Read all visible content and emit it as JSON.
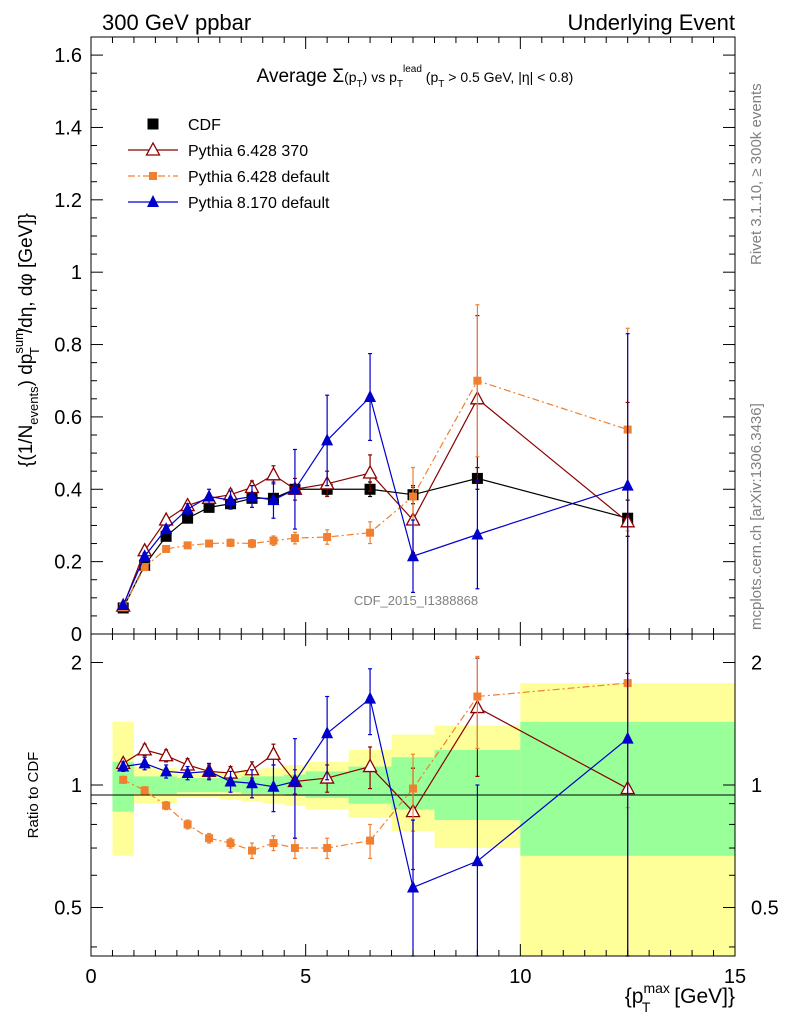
{
  "header": {
    "left": "300 GeV ppbar",
    "right": "Underlying Event"
  },
  "side": {
    "rivet": "Rivet 3.1.10, ≥ 300k events",
    "mcplots": "mcplots.cern.ch [arXiv:1306.3436]"
  },
  "chart_data": [
    {
      "type": "scatter",
      "title": "Average Σ(p_T) vs p_T^lead (p_T > 0.5 GeV, |η| < 0.8)",
      "title_parts": {
        "a": "Average ",
        "b": "Σ",
        "c": "(p",
        "d": "T",
        "e": ") vs p",
        "f": "T",
        "g": "lead",
        "h": " (p",
        "i": "T",
        "j": " > 0.5 GeV, |η| < 0.8)"
      },
      "ylabel": "(1/N_events) dp_T^sum/dη, dφ [GeV]",
      "ylabel_parts": {
        "a": "{(1/N",
        "b": "events",
        "c": ") dp",
        "d": "sum",
        "e": "T",
        "f": "/dη, dφ [GeV]}"
      },
      "watermark": "CDF_2015_I1388868",
      "xlim": [
        0,
        15
      ],
      "ylim": [
        0,
        1.65
      ],
      "yticks": [
        "0",
        "0.2",
        "0.4",
        "0.6",
        "0.8",
        "1",
        "1.2",
        "1.4",
        "1.6"
      ],
      "legend_position": "top-left",
      "series": [
        {
          "name": "CDF",
          "color": "#000000",
          "marker": "square",
          "x": [
            0.75,
            1.25,
            1.75,
            2.25,
            2.75,
            3.25,
            3.75,
            4.25,
            4.75,
            5.5,
            6.5,
            7.5,
            9.0,
            12.5
          ],
          "y": [
            0.072,
            0.19,
            0.27,
            0.32,
            0.35,
            0.36,
            0.375,
            0.375,
            0.4,
            0.4,
            0.4,
            0.385,
            0.43,
            0.32
          ],
          "yerr": [
            0.004,
            0.005,
            0.006,
            0.006,
            0.007,
            0.008,
            0.008,
            0.01,
            0.012,
            0.015,
            0.02,
            0.025,
            0.03,
            0.05
          ]
        },
        {
          "name": "Pythia 6.428 370",
          "color": "#8b0000",
          "marker": "open-triangle",
          "x": [
            0.75,
            1.25,
            1.75,
            2.25,
            2.75,
            3.25,
            3.75,
            4.25,
            4.75,
            5.5,
            6.5,
            7.5,
            9.0,
            12.5
          ],
          "y": [
            0.077,
            0.23,
            0.315,
            0.355,
            0.375,
            0.385,
            0.405,
            0.44,
            0.4,
            0.415,
            0.445,
            0.315,
            0.65,
            0.31
          ],
          "yerr": [
            0.004,
            0.01,
            0.01,
            0.012,
            0.013,
            0.015,
            0.018,
            0.025,
            0.03,
            0.035,
            0.05,
            0.09,
            0.23,
            0.33
          ]
        },
        {
          "name": "Pythia 6.428 default",
          "color": "#f08030",
          "marker": "small-square",
          "dashed": true,
          "x": [
            0.75,
            1.25,
            1.75,
            2.25,
            2.75,
            3.25,
            3.75,
            4.25,
            4.75,
            5.5,
            6.5,
            7.5,
            9.0,
            12.5
          ],
          "y": [
            0.074,
            0.185,
            0.235,
            0.245,
            0.25,
            0.252,
            0.25,
            0.258,
            0.265,
            0.268,
            0.28,
            0.38,
            0.7,
            0.565
          ],
          "yerr": [
            0.003,
            0.006,
            0.007,
            0.008,
            0.009,
            0.01,
            0.011,
            0.013,
            0.016,
            0.02,
            0.03,
            0.08,
            0.21,
            0.28
          ]
        },
        {
          "name": "Pythia 8.170 default",
          "color": "#0000cc",
          "marker": "triangle",
          "x": [
            0.75,
            1.25,
            1.75,
            2.25,
            2.75,
            3.25,
            3.75,
            4.25,
            4.75,
            5.5,
            6.5,
            7.5,
            9.0,
            12.5
          ],
          "y": [
            0.08,
            0.215,
            0.29,
            0.345,
            0.38,
            0.37,
            0.38,
            0.37,
            0.4,
            0.535,
            0.655,
            0.215,
            0.275,
            0.41
          ],
          "yerr": [
            0.004,
            0.01,
            0.01,
            0.015,
            0.02,
            0.025,
            0.03,
            0.05,
            0.11,
            0.125,
            0.12,
            0.1,
            0.15,
            0.42
          ]
        }
      ]
    },
    {
      "type": "scatter",
      "title": "",
      "xlabel": "{p_T^max [GeV]}",
      "xlabel_parts": {
        "a": "{p",
        "b": "max",
        "c": "T",
        "d": " [GeV]}"
      },
      "ylabel": "Ratio to CDF",
      "xlim": [
        0,
        15
      ],
      "ylim": [
        0.38,
        2.35
      ],
      "log_y": true,
      "yticks": [
        "0.5",
        "1",
        "2"
      ],
      "xticks": [
        "0",
        "5",
        "10",
        "15"
      ],
      "bands": [
        {
          "x0": 0.5,
          "x1": 1.0,
          "y1lo": 0.86,
          "y1hi": 1.14,
          "y2lo": 0.67,
          "y2hi": 1.43
        },
        {
          "x0": 1.0,
          "x1": 1.5,
          "y1lo": 0.95,
          "y1hi": 1.05,
          "y2lo": 0.9,
          "y2hi": 1.11
        },
        {
          "x0": 1.5,
          "x1": 2.0,
          "y1lo": 0.95,
          "y1hi": 1.05,
          "y2lo": 0.9,
          "y2hi": 1.1
        },
        {
          "x0": 2.0,
          "x1": 2.5,
          "y1lo": 0.96,
          "y1hi": 1.04,
          "y2lo": 0.93,
          "y2hi": 1.08
        },
        {
          "x0": 2.5,
          "x1": 3.0,
          "y1lo": 0.96,
          "y1hi": 1.04,
          "y2lo": 0.93,
          "y2hi": 1.08
        },
        {
          "x0": 3.0,
          "x1": 3.5,
          "y1lo": 0.96,
          "y1hi": 1.04,
          "y2lo": 0.92,
          "y2hi": 1.08
        },
        {
          "x0": 3.5,
          "x1": 4.0,
          "y1lo": 0.95,
          "y1hi": 1.05,
          "y2lo": 0.91,
          "y2hi": 1.09
        },
        {
          "x0": 4.0,
          "x1": 4.5,
          "y1lo": 0.95,
          "y1hi": 1.05,
          "y2lo": 0.9,
          "y2hi": 1.1
        },
        {
          "x0": 4.5,
          "x1": 5.0,
          "y1lo": 0.94,
          "y1hi": 1.06,
          "y2lo": 0.89,
          "y2hi": 1.12
        },
        {
          "x0": 5.0,
          "x1": 6.0,
          "y1lo": 0.93,
          "y1hi": 1.08,
          "y2lo": 0.87,
          "y2hi": 1.14
        },
        {
          "x0": 6.0,
          "x1": 7.0,
          "y1lo": 0.9,
          "y1hi": 1.11,
          "y2lo": 0.83,
          "y2hi": 1.22
        },
        {
          "x0": 7.0,
          "x1": 8.0,
          "y1lo": 0.87,
          "y1hi": 1.17,
          "y2lo": 0.77,
          "y2hi": 1.33
        },
        {
          "x0": 8.0,
          "x1": 10.0,
          "y1lo": 0.82,
          "y1hi": 1.22,
          "y2lo": 0.7,
          "y2hi": 1.4
        },
        {
          "x0": 10.0,
          "x1": 15.0,
          "y1lo": 0.67,
          "y1hi": 1.43,
          "y2lo": 0.3,
          "y2hi": 1.78
        }
      ],
      "series": [
        {
          "name": "Pythia 6.428 370",
          "color": "#8b0000",
          "marker": "open-triangle",
          "x": [
            0.75,
            1.25,
            1.75,
            2.25,
            2.75,
            3.25,
            3.75,
            4.25,
            4.75,
            5.5,
            6.5,
            7.5,
            9.0,
            12.5
          ],
          "y": [
            1.13,
            1.22,
            1.18,
            1.12,
            1.08,
            1.07,
            1.09,
            1.19,
            1.02,
            1.04,
            1.11,
            0.86,
            1.55,
            0.98
          ],
          "yerr": [
            0.03,
            0.04,
            0.04,
            0.04,
            0.04,
            0.04,
            0.05,
            0.07,
            0.07,
            0.08,
            0.13,
            0.24,
            0.5,
            0.9
          ]
        },
        {
          "name": "Pythia 6.428 default",
          "color": "#f08030",
          "marker": "small-square",
          "dashed": true,
          "x": [
            0.75,
            1.25,
            1.75,
            2.25,
            2.75,
            3.25,
            3.75,
            4.25,
            4.75,
            5.5,
            6.5,
            7.5,
            9.0,
            12.5
          ],
          "y": [
            1.03,
            0.97,
            0.89,
            0.8,
            0.74,
            0.72,
            0.69,
            0.72,
            0.7,
            0.7,
            0.73,
            0.98,
            1.65,
            1.78
          ],
          "yerr": [
            0.02,
            0.02,
            0.02,
            0.02,
            0.02,
            0.02,
            0.03,
            0.03,
            0.04,
            0.04,
            0.07,
            0.21,
            0.42,
            0.9
          ]
        },
        {
          "name": "Pythia 8.170 default",
          "color": "#0000cc",
          "marker": "triangle",
          "x": [
            0.75,
            1.25,
            1.75,
            2.25,
            2.75,
            3.25,
            3.75,
            4.25,
            4.75,
            5.5,
            6.5,
            7.5,
            9.0,
            12.5
          ],
          "y": [
            1.11,
            1.13,
            1.08,
            1.07,
            1.08,
            1.02,
            1.01,
            0.99,
            1.02,
            1.34,
            1.63,
            0.56,
            0.65,
            1.3
          ],
          "yerr": [
            0.03,
            0.04,
            0.04,
            0.04,
            0.05,
            0.06,
            0.08,
            0.13,
            0.28,
            0.31,
            0.3,
            0.26,
            0.35,
            1.3
          ]
        }
      ]
    }
  ]
}
